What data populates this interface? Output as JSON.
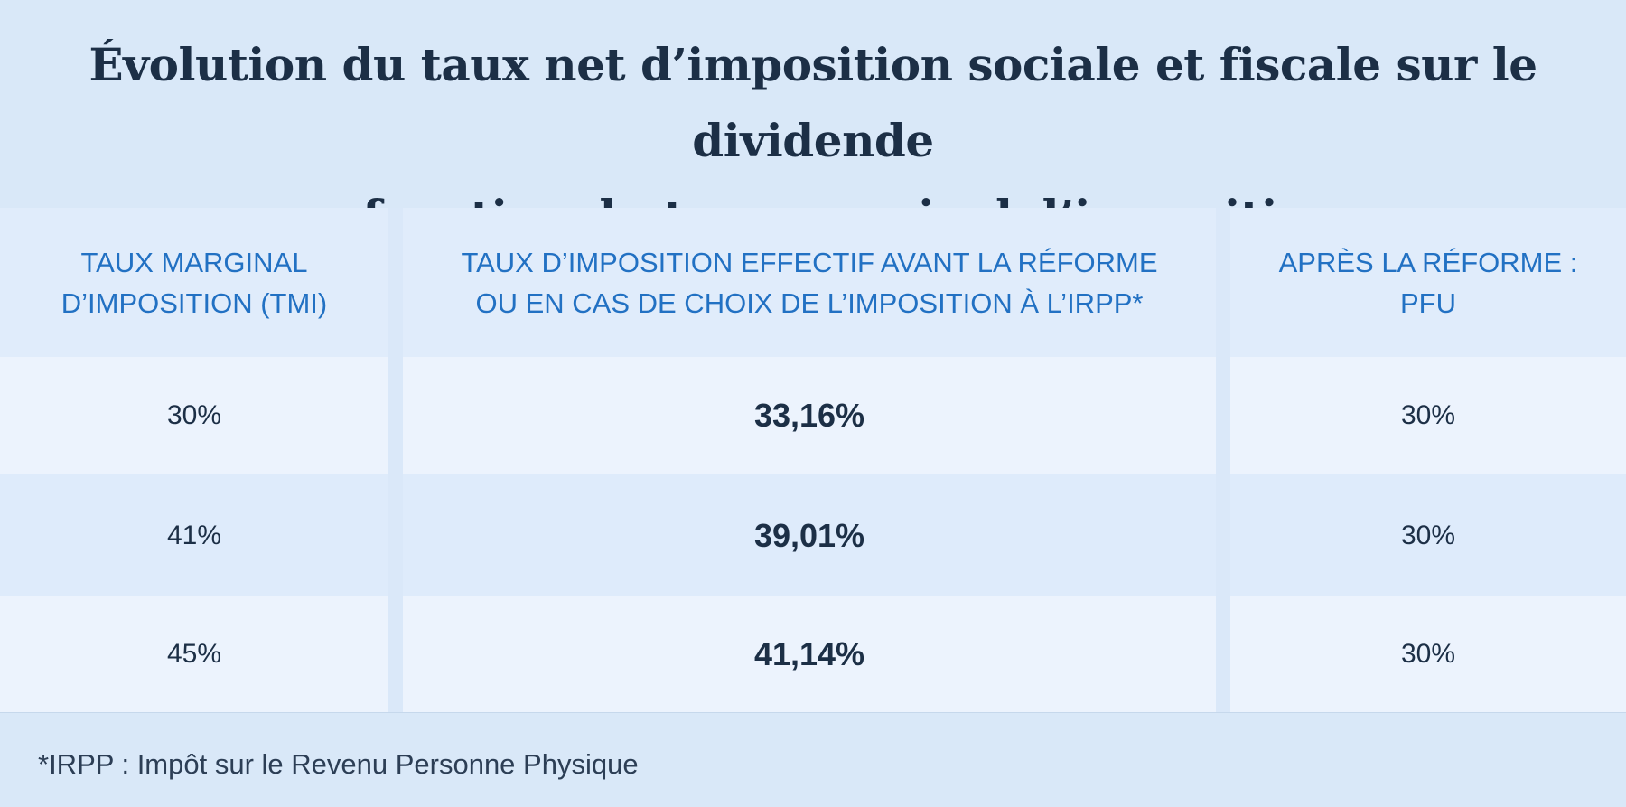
{
  "title": {
    "line1": "Évolution du taux net d’imposition sociale et fiscale sur le dividende",
    "line2": "en fonction du taux marginal d’imposition"
  },
  "chart_data": {
    "type": "table",
    "columns": [
      {
        "line1": "TAUX MARGINAL",
        "line2": "D’IMPOSITION (TMI)"
      },
      {
        "line1": "TAUX D’IMPOSITION EFFECTIF AVANT LA RÉFORME",
        "line2": "OU EN CAS DE CHOIX DE L’IMPOSITION À L’IRPP*"
      },
      {
        "line1": "APRÈS LA RÉFORME :",
        "line2": "PFU"
      }
    ],
    "rows": [
      [
        "30%",
        "33,16%",
        "30%"
      ],
      [
        "41%",
        "39,01%",
        "30%"
      ],
      [
        "45%",
        "41,14%",
        "30%"
      ]
    ]
  },
  "footnote": "*IRPP : Impôt sur le Revenu Personne Physique",
  "colors": {
    "background": "#d9e8f8",
    "header_text": "#2271c3",
    "body_text": "#1c2f46"
  }
}
